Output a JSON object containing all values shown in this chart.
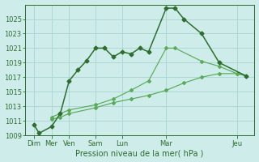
{
  "background_color": "#ceecea",
  "grid_color": "#aad4d0",
  "line_color_dark": "#2d6e2d",
  "line_color_light": "#5aaa5a",
  "xlabel": "Pression niveau de la mer( hPa )",
  "ylim": [
    1009,
    1027
  ],
  "yticks": [
    1009,
    1011,
    1013,
    1015,
    1017,
    1019,
    1021,
    1023,
    1025
  ],
  "xlim": [
    0,
    13
  ],
  "xtick_labels_major": [
    "Dim",
    "Mer",
    "Ven",
    "Sam",
    "Lun",
    "Mar",
    "Jeu"
  ],
  "xtick_positions_major": [
    0.5,
    1.5,
    2.5,
    4.0,
    5.5,
    8.0,
    12.0
  ],
  "series1_x": [
    0.5,
    0.8,
    1.5,
    2.0,
    2.5,
    3.0,
    3.5,
    4.0,
    4.5,
    5.0,
    5.5,
    6.0,
    6.5,
    7.0,
    8.0,
    8.5,
    9.0,
    10.0,
    11.0,
    12.5
  ],
  "series1_y": [
    1010.5,
    1009.3,
    1010.2,
    1012.0,
    1016.5,
    1018.0,
    1019.3,
    1021.0,
    1021.0,
    1019.8,
    1020.5,
    1020.2,
    1021.0,
    1020.5,
    1026.5,
    1026.5,
    1025.0,
    1023.0,
    1019.0,
    1017.2
  ],
  "series2_x": [
    1.5,
    2.0,
    2.5,
    4.0,
    5.0,
    6.0,
    7.0,
    8.0,
    8.5,
    10.0,
    11.0,
    12.0,
    12.5
  ],
  "series2_y": [
    1011.5,
    1012.0,
    1012.5,
    1013.2,
    1014.0,
    1015.2,
    1016.5,
    1021.0,
    1021.0,
    1019.2,
    1018.5,
    1017.5,
    1017.2
  ],
  "series3_x": [
    1.5,
    2.0,
    2.5,
    4.0,
    5.0,
    6.0,
    7.0,
    8.0,
    9.0,
    10.0,
    11.0,
    12.0,
    12.5
  ],
  "series3_y": [
    1011.2,
    1011.5,
    1012.0,
    1012.8,
    1013.5,
    1014.0,
    1014.5,
    1015.2,
    1016.2,
    1017.0,
    1017.5,
    1017.5,
    1017.2
  ],
  "tick_fontsize": 6,
  "xlabel_fontsize": 7,
  "marker_size_dark": 2.5,
  "marker_size_light": 2.0,
  "linewidth_dark": 1.1,
  "linewidth_light": 0.85
}
